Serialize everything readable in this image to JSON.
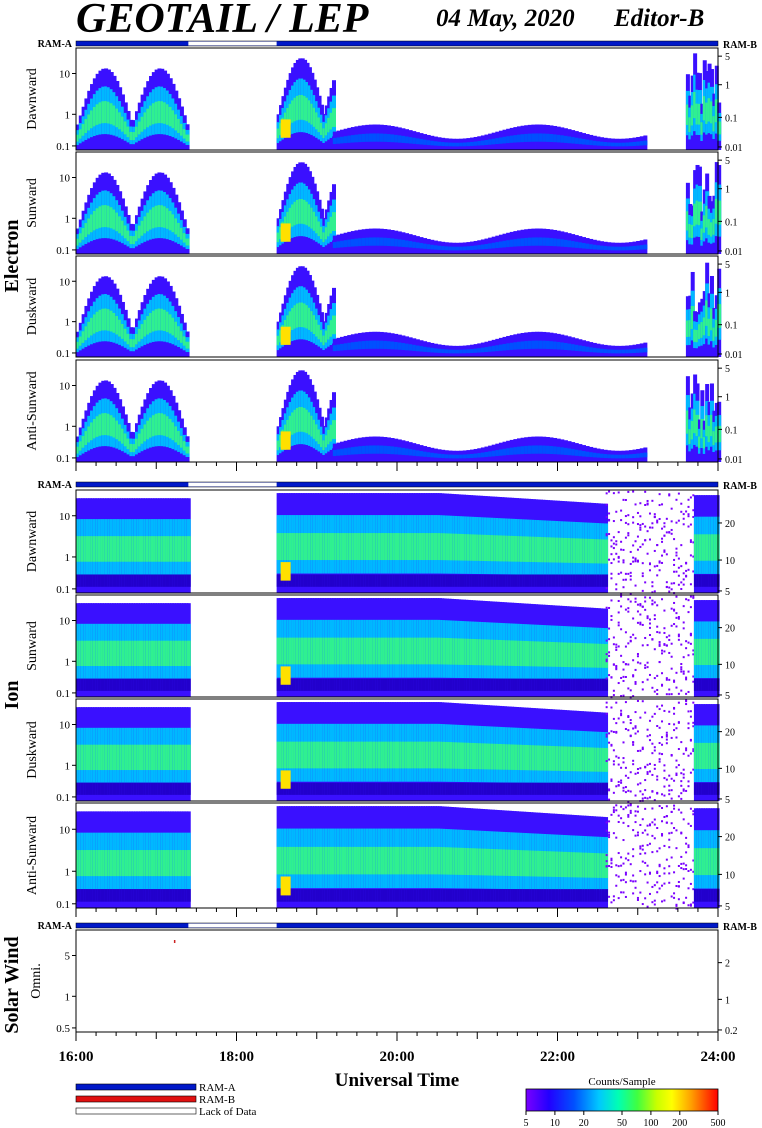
{
  "header": {
    "title": "GEOTAIL / LEP",
    "date": "04 May, 2020",
    "editor": "Editor-B"
  },
  "colors": {
    "ram_a": "#0018c8",
    "ram_b": "#e01010",
    "lack": "#ffffff",
    "scale": [
      "#7a00ff",
      "#2200ff",
      "#0040ff",
      "#00c0ff",
      "#00ffb0",
      "#40ff40",
      "#c0ff00",
      "#ffff00",
      "#ffb000",
      "#ff4000",
      "#ff0000"
    ]
  },
  "chart_data": [
    {
      "type": "heatmap",
      "group": "Electron",
      "ram_left": "RAM-A",
      "ram_right": "RAM-B",
      "panels": [
        {
          "name": "Dawnward",
          "left_ticks": [
            "10",
            "1",
            "0.1"
          ],
          "right_ticks": [
            "5",
            "1",
            "0.1",
            "0.01"
          ]
        },
        {
          "name": "Sunward",
          "left_ticks": [
            "10",
            "1",
            "0.1"
          ],
          "right_ticks": [
            "5",
            "1",
            "0.1",
            "0.01"
          ]
        },
        {
          "name": "Duskward",
          "left_ticks": [
            "10",
            "1",
            "0.1"
          ],
          "right_ticks": [
            "5",
            "1",
            "0.1",
            "0.01"
          ]
        },
        {
          "name": "Anti-Sunward",
          "left_ticks": [
            "10",
            "1",
            "0.1"
          ],
          "right_ticks": [
            "5",
            "1",
            "0.1",
            "0.01"
          ]
        }
      ],
      "data_gap": [
        17.4,
        18.5
      ],
      "xlim": [
        16,
        24
      ]
    },
    {
      "type": "heatmap",
      "group": "Ion",
      "ram_left": "RAM-A",
      "ram_right": "RAM-B",
      "panels": [
        {
          "name": "Dawnward",
          "left_ticks": [
            "10",
            "1",
            "0.1"
          ],
          "right_ticks": [
            "20",
            "10",
            "5"
          ]
        },
        {
          "name": "Sunward",
          "left_ticks": [
            "10",
            "1",
            "0.1"
          ],
          "right_ticks": [
            "20",
            "10",
            "5"
          ]
        },
        {
          "name": "Duskward",
          "left_ticks": [
            "10",
            "1",
            "0.1"
          ],
          "right_ticks": [
            "20",
            "10",
            "5"
          ]
        },
        {
          "name": "Anti-Sunward",
          "left_ticks": [
            "10",
            "1",
            "0.1"
          ],
          "right_ticks": [
            "20",
            "10",
            "5"
          ]
        }
      ],
      "data_gap": [
        17.4,
        18.5
      ],
      "xlim": [
        16,
        24
      ]
    },
    {
      "type": "heatmap",
      "group": "Solar Wind",
      "ram_left": "RAM-A",
      "ram_right": "RAM-B",
      "panels": [
        {
          "name": "Omni.",
          "left_ticks": [
            "5",
            "1",
            "0.5"
          ],
          "right_ticks": [
            "2",
            "1",
            "0.2"
          ]
        }
      ],
      "data_gap": [
        17.4,
        18.5
      ],
      "xlim": [
        16,
        24
      ]
    }
  ],
  "x_axis": {
    "label": "Universal Time",
    "ticks": [
      "16:00",
      "18:00",
      "20:00",
      "22:00",
      "24:00"
    ]
  },
  "legend": {
    "items": [
      "RAM-A",
      "RAM-B",
      "Lack of Data"
    ]
  },
  "colorbar": {
    "title": "Counts/Sample",
    "ticks": [
      "5",
      "10",
      "20",
      "50",
      "100",
      "200",
      "500"
    ]
  }
}
